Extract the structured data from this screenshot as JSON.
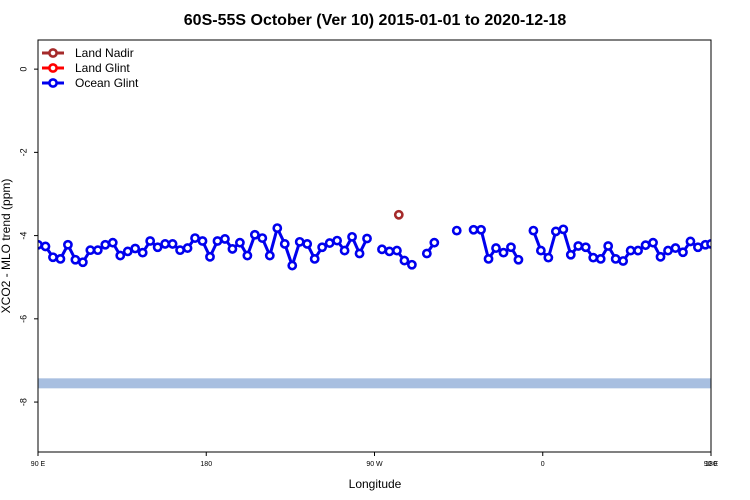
{
  "chart_data": {
    "type": "line",
    "title": "60S-55S October (Ver 10)   2015-01-01 to 2020-12-18",
    "xlabel": "Longitude",
    "ylabel": "XCO2 - MLO trend (ppm)",
    "xlim": [
      90,
      450
    ],
    "ylim": [
      -9.2,
      0.7
    ],
    "x_ticks": [
      {
        "value": 90,
        "label": "90 E"
      },
      {
        "value": 180,
        "label": "180"
      },
      {
        "value": 270,
        "label": "90 W"
      },
      {
        "value": 360,
        "label": "0"
      },
      {
        "value": 450,
        "label": "90 E"
      },
      {
        "value": 540,
        "label": "180"
      }
    ],
    "y_ticks": [
      {
        "value": 0,
        "label": "0"
      },
      {
        "value": -2,
        "label": "-2"
      },
      {
        "value": -4,
        "label": "-4"
      },
      {
        "value": -6,
        "label": "-6"
      },
      {
        "value": -8,
        "label": "-8"
      }
    ],
    "legend_position": "top-left",
    "band": {
      "y": -7.55,
      "color": "#a8bfe0"
    },
    "series": [
      {
        "name": "Land Nadir",
        "color": "#a52a2a",
        "points": [
          [
            283,
            -3.5
          ]
        ]
      },
      {
        "name": "Land Glint",
        "color": "#ff0000",
        "points": []
      },
      {
        "name": "Ocean Glint",
        "color": "#0000ee",
        "segments": [
          [
            [
              90,
              -4.22
            ],
            [
              94,
              -4.26
            ],
            [
              98,
              -4.52
            ],
            [
              102,
              -4.56
            ],
            [
              106,
              -4.22
            ],
            [
              110,
              -4.58
            ],
            [
              114,
              -4.64
            ],
            [
              118,
              -4.35
            ],
            [
              122,
              -4.35
            ],
            [
              126,
              -4.22
            ],
            [
              130,
              -4.17
            ],
            [
              134,
              -4.48
            ],
            [
              138,
              -4.38
            ],
            [
              142,
              -4.31
            ],
            [
              146,
              -4.41
            ],
            [
              150,
              -4.13
            ],
            [
              154,
              -4.28
            ],
            [
              158,
              -4.2
            ],
            [
              162,
              -4.2
            ],
            [
              166,
              -4.35
            ],
            [
              170,
              -4.3
            ],
            [
              174,
              -4.06
            ],
            [
              178,
              -4.13
            ],
            [
              182,
              -4.51
            ],
            [
              186,
              -4.13
            ],
            [
              190,
              -4.08
            ],
            [
              194,
              -4.32
            ],
            [
              198,
              -4.17
            ],
            [
              202,
              -4.48
            ],
            [
              206,
              -3.98
            ],
            [
              210,
              -4.06
            ],
            [
              214,
              -4.48
            ],
            [
              218,
              -3.82
            ],
            [
              222,
              -4.2
            ],
            [
              226,
              -4.72
            ],
            [
              230,
              -4.15
            ],
            [
              234,
              -4.2
            ],
            [
              238,
              -4.56
            ],
            [
              242,
              -4.28
            ],
            [
              246,
              -4.18
            ],
            [
              250,
              -4.12
            ],
            [
              254,
              -4.36
            ],
            [
              258,
              -4.03
            ],
            [
              262,
              -4.43
            ],
            [
              266,
              -4.07
            ]
          ],
          [
            [
              274,
              -4.33
            ],
            [
              278,
              -4.38
            ],
            [
              282,
              -4.36
            ],
            [
              286,
              -4.6
            ],
            [
              290,
              -4.7
            ]
          ],
          [
            [
              298,
              -4.43
            ],
            [
              302,
              -4.17
            ]
          ],
          [
            [
              314,
              -3.88
            ]
          ],
          [
            [
              323,
              -3.86
            ],
            [
              327,
              -3.86
            ],
            [
              331,
              -4.56
            ],
            [
              335,
              -4.3
            ],
            [
              339,
              -4.41
            ],
            [
              343,
              -4.28
            ],
            [
              347,
              -4.58
            ]
          ],
          [
            [
              355,
              -3.88
            ],
            [
              359,
              -4.36
            ],
            [
              363,
              -4.53
            ],
            [
              367,
              -3.9
            ],
            [
              371,
              -3.85
            ],
            [
              375,
              -4.46
            ],
            [
              379,
              -4.25
            ],
            [
              383,
              -4.28
            ],
            [
              387,
              -4.53
            ],
            [
              391,
              -4.56
            ],
            [
              395,
              -4.25
            ],
            [
              399,
              -4.56
            ],
            [
              403,
              -4.61
            ],
            [
              407,
              -4.36
            ],
            [
              411,
              -4.36
            ],
            [
              415,
              -4.23
            ],
            [
              419,
              -4.17
            ],
            [
              423,
              -4.51
            ],
            [
              427,
              -4.36
            ],
            [
              431,
              -4.3
            ],
            [
              435,
              -4.4
            ],
            [
              439,
              -4.14
            ],
            [
              443,
              -4.28
            ],
            [
              447,
              -4.22
            ],
            [
              450,
              -4.2
            ]
          ]
        ]
      }
    ]
  }
}
